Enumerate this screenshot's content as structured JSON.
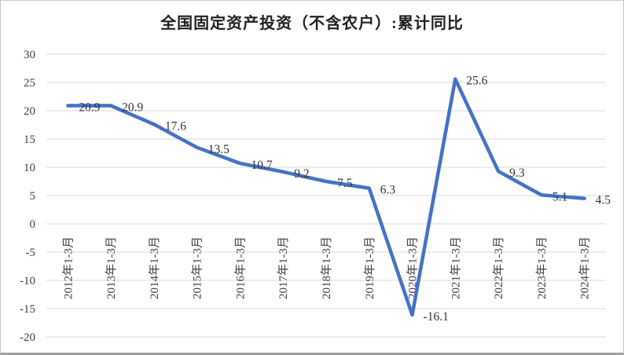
{
  "chart_data": {
    "type": "line",
    "title": "全国固定资产投资（不含农户）:累计同比",
    "categories": [
      "2012年1-3月",
      "2013年1-3月",
      "2014年1-3月",
      "2015年1-3月",
      "2016年1-3月",
      "2017年1-3月",
      "2018年1-3月",
      "2019年1-3月",
      "2020年1-3月",
      "2021年1-3月",
      "2022年1-3月",
      "2023年1-3月",
      "2024年1-3月"
    ],
    "values": [
      20.9,
      20.9,
      17.6,
      13.5,
      10.7,
      9.2,
      7.5,
      6.3,
      -16.1,
      25.6,
      9.3,
      5.1,
      4.5
    ],
    "data_label_decimals": 1,
    "ylim": [
      -20,
      30
    ],
    "ytick_step": 5,
    "yticks": [
      "-20",
      "-15",
      "-10",
      "-5",
      "0",
      "5",
      "10",
      "15",
      "20",
      "25",
      "30"
    ],
    "grid": "horizontal",
    "legend": "none",
    "xlabel": "",
    "ylabel": "",
    "line_color": "#4472C4",
    "gridline_color": "#D9D9D9",
    "tick_label_color": "#404040",
    "data_label_color": "#333333",
    "title_color": "#1f1f1f"
  }
}
